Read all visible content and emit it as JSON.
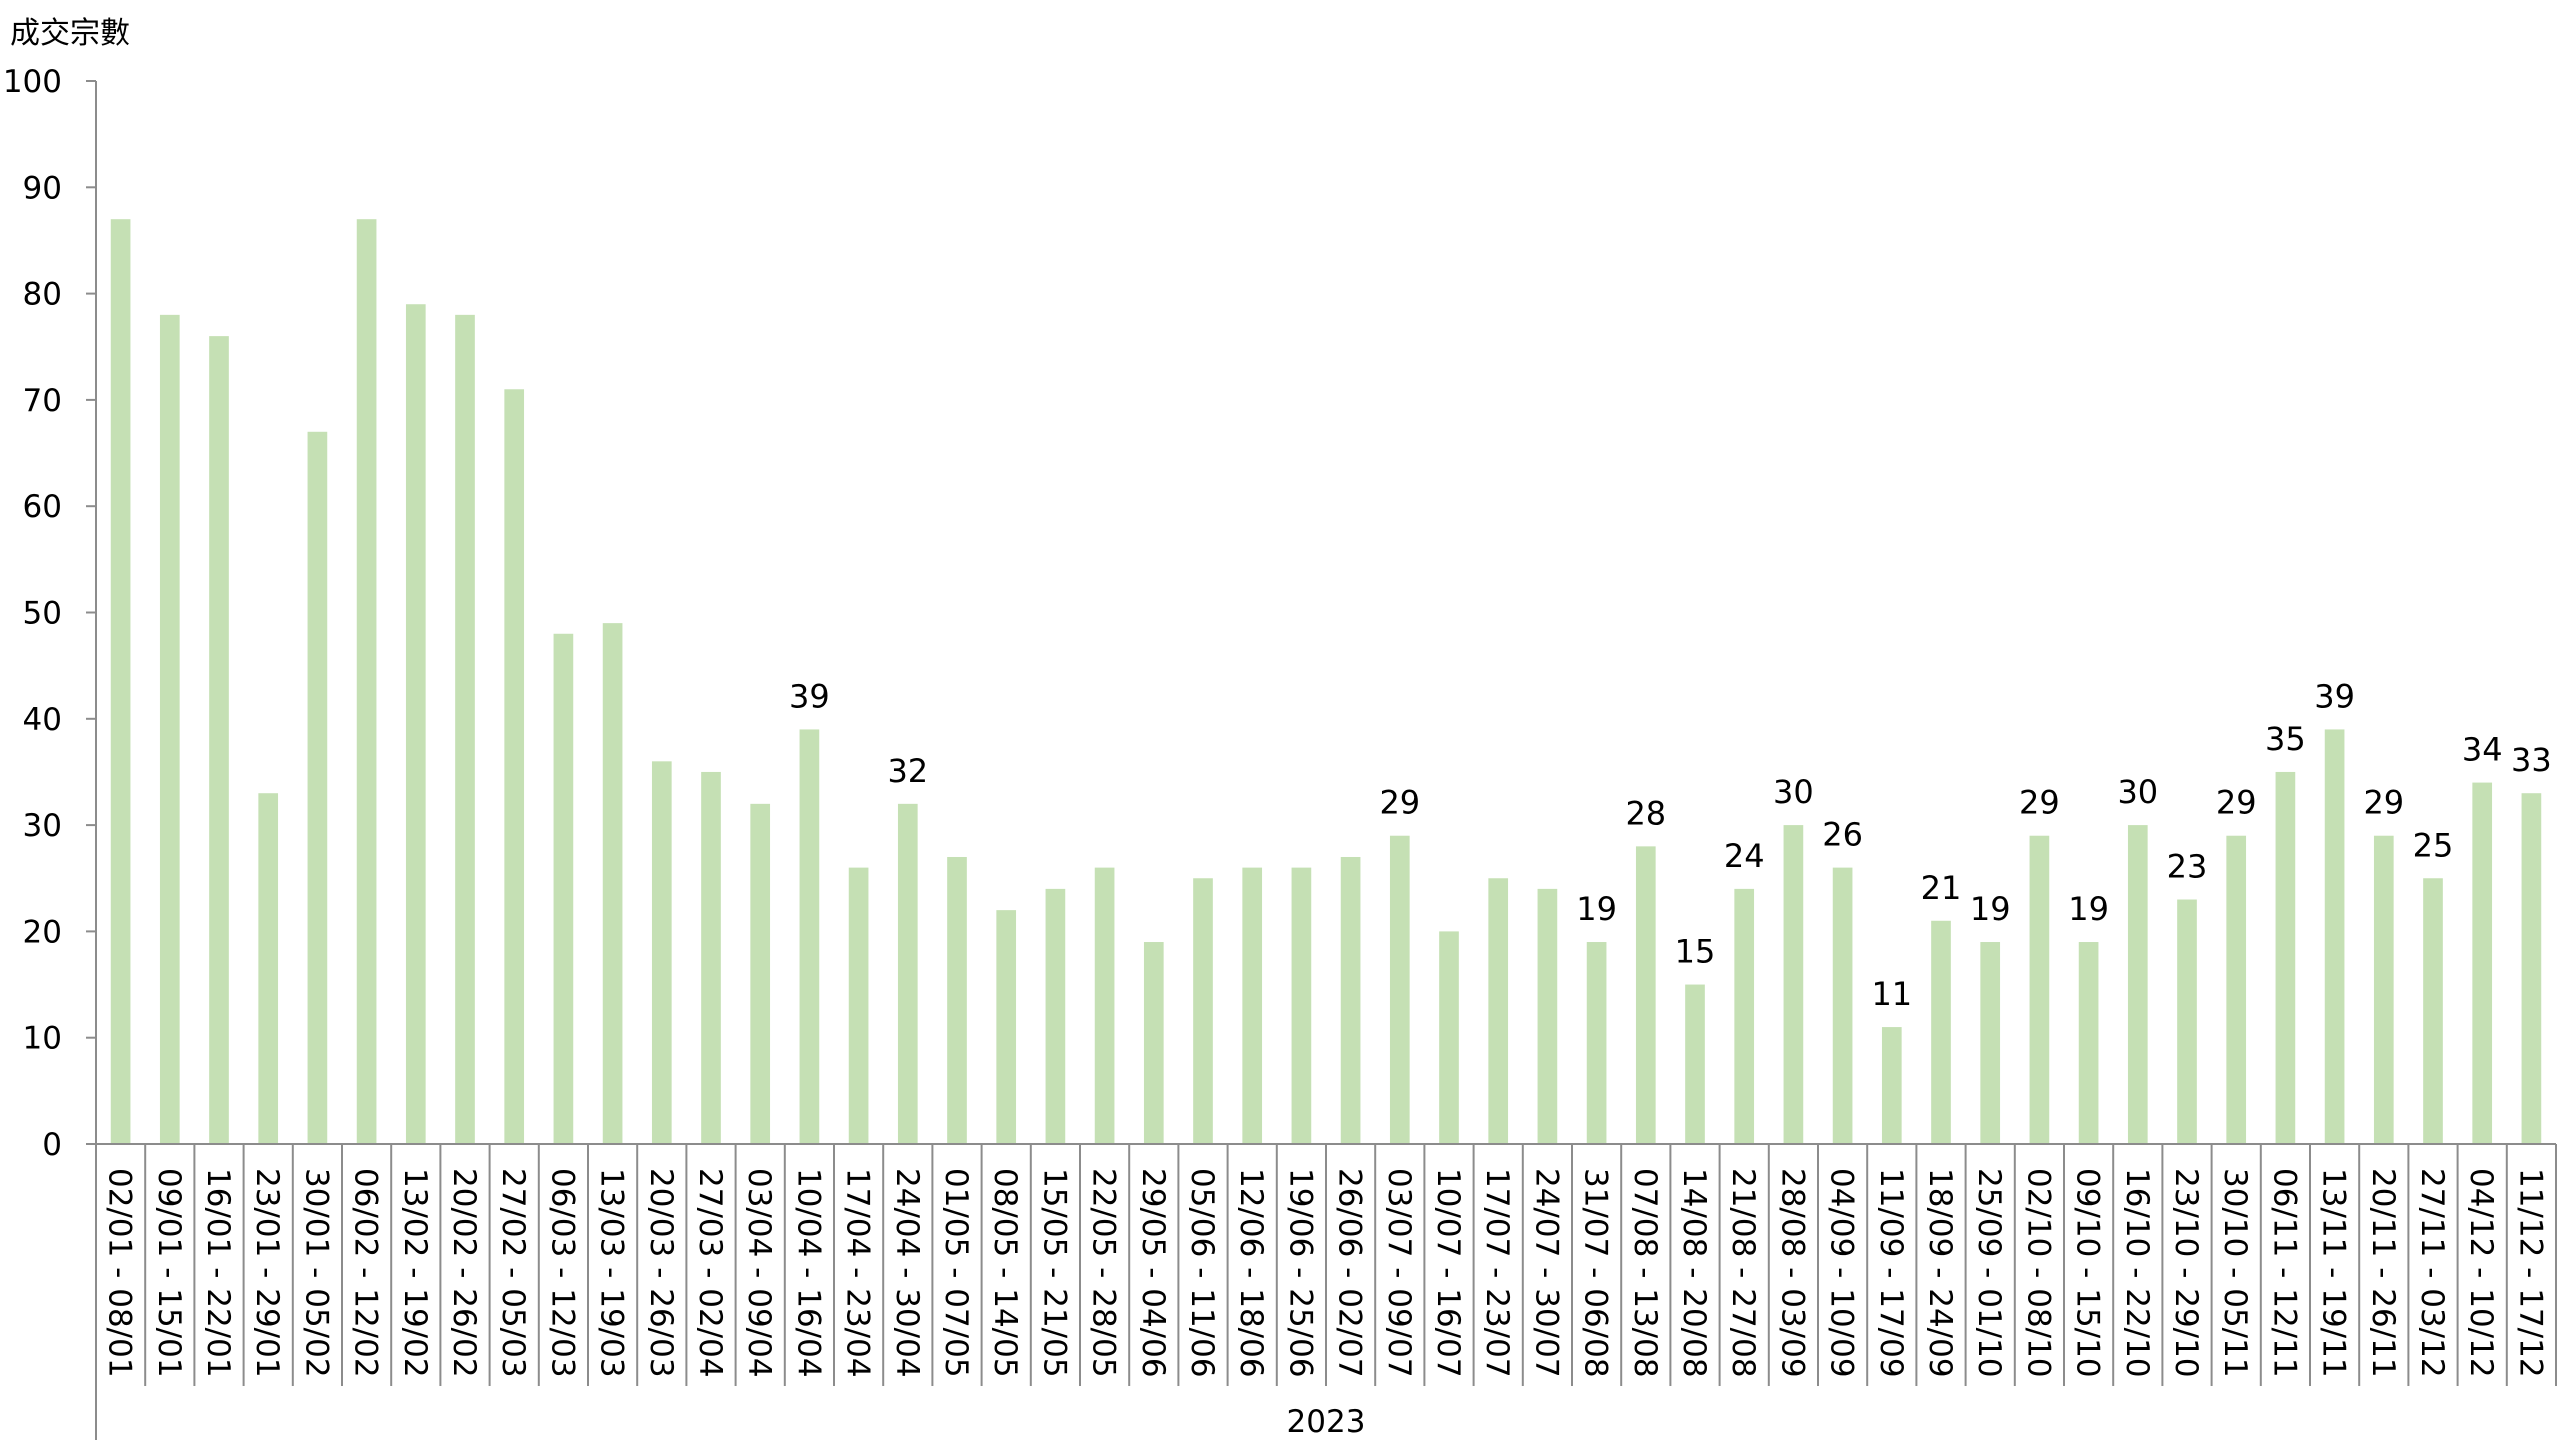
{
  "chart_data": {
    "type": "bar",
    "ylabel": "成交宗數",
    "ylim": [
      0,
      100
    ],
    "yticks": [
      0,
      10,
      20,
      30,
      40,
      50,
      60,
      70,
      80,
      90,
      100
    ],
    "grid": false,
    "bar_color": "#c5e0b4",
    "group_label": "2023",
    "categories": [
      "02/01 - 08/01",
      "09/01 - 15/01",
      "16/01 - 22/01",
      "23/01 - 29/01",
      "30/01 - 05/02",
      "06/02 - 12/02",
      "13/02 - 19/02",
      "20/02 - 26/02",
      "27/02 - 05/03",
      "06/03 - 12/03",
      "13/03 - 19/03",
      "20/03 - 26/03",
      "27/03 - 02/04",
      "03/04 - 09/04",
      "10/04 - 16/04",
      "17/04 - 23/04",
      "24/04 - 30/04",
      "01/05 - 07/05",
      "08/05 - 14/05",
      "15/05 - 21/05",
      "22/05 - 28/05",
      "29/05 - 04/06",
      "05/06 - 11/06",
      "12/06 - 18/06",
      "19/06 - 25/06",
      "26/06 - 02/07",
      "03/07 - 09/07",
      "10/07 - 16/07",
      "17/07 - 23/07",
      "24/07 - 30/07",
      "31/07 - 06/08",
      "07/08 - 13/08",
      "14/08 - 20/08",
      "21/08 - 27/08",
      "28/08 - 03/09",
      "04/09 - 10/09",
      "11/09 - 17/09",
      "18/09 - 24/09",
      "25/09 - 01/10",
      "02/10 - 08/10",
      "09/10 - 15/10",
      "16/10 - 22/10",
      "23/10 - 29/10",
      "30/10 - 05/11",
      "06/11 - 12/11",
      "13/11 - 19/11",
      "20/11 - 26/11",
      "27/11 - 03/12",
      "04/12 - 10/12",
      "11/12 - 17/12"
    ],
    "values": [
      87,
      78,
      76,
      33,
      67,
      87,
      79,
      78,
      71,
      48,
      49,
      36,
      35,
      32,
      39,
      26,
      32,
      27,
      22,
      24,
      26,
      19,
      25,
      26,
      26,
      27,
      29,
      20,
      25,
      24,
      19,
      28,
      15,
      24,
      30,
      26,
      11,
      21,
      19,
      29,
      19,
      30,
      23,
      29,
      35,
      39,
      29,
      25,
      34,
      33
    ],
    "data_labels": [
      null,
      null,
      null,
      null,
      null,
      null,
      null,
      null,
      null,
      null,
      null,
      null,
      null,
      null,
      39,
      null,
      32,
      null,
      null,
      null,
      null,
      null,
      null,
      null,
      null,
      null,
      29,
      null,
      null,
      null,
      19,
      28,
      15,
      24,
      30,
      26,
      11,
      21,
      19,
      29,
      19,
      30,
      23,
      29,
      35,
      39,
      29,
      25,
      34,
      33
    ]
  }
}
